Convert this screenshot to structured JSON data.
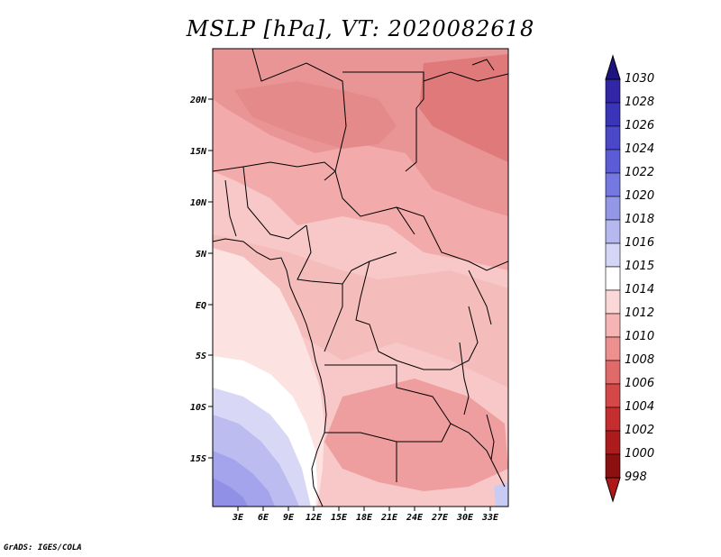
{
  "title": "MSLP [hPa], VT: 2020082618",
  "credit": "GrADS: IGES/COLA",
  "map": {
    "lat_labels": [
      "20N",
      "15N",
      "10N",
      "5N",
      "EQ",
      "5S",
      "10S",
      "15S"
    ],
    "lon_labels": [
      "3E",
      "6E",
      "9E",
      "12E",
      "15E",
      "18E",
      "21E",
      "24E",
      "27E",
      "30E",
      "33E"
    ],
    "lat_range": [
      -20,
      24.5
    ],
    "lon_range": [
      0,
      35
    ]
  },
  "colorbar": {
    "levels": [
      "1030",
      "1028",
      "1026",
      "1024",
      "1022",
      "1020",
      "1018",
      "1016",
      "1015",
      "1014",
      "1012",
      "1010",
      "1008",
      "1006",
      "1004",
      "1002",
      "1000",
      "998"
    ],
    "colors": [
      "#2a1a8c",
      "#3026a6",
      "#3a34b8",
      "#4a48c8",
      "#5c5cd6",
      "#7478e0",
      "#9496e6",
      "#b4b8ee",
      "#d4d6f6",
      "#ffffff",
      "#fbd8d8",
      "#f6b4b4",
      "#ec9090",
      "#e06a6a",
      "#d44848",
      "#c42e2e",
      "#ad1c1c",
      "#8c1010"
    ],
    "top_arrow_color": "#1e1480",
    "bottom_arrow_color": "#b01818"
  }
}
